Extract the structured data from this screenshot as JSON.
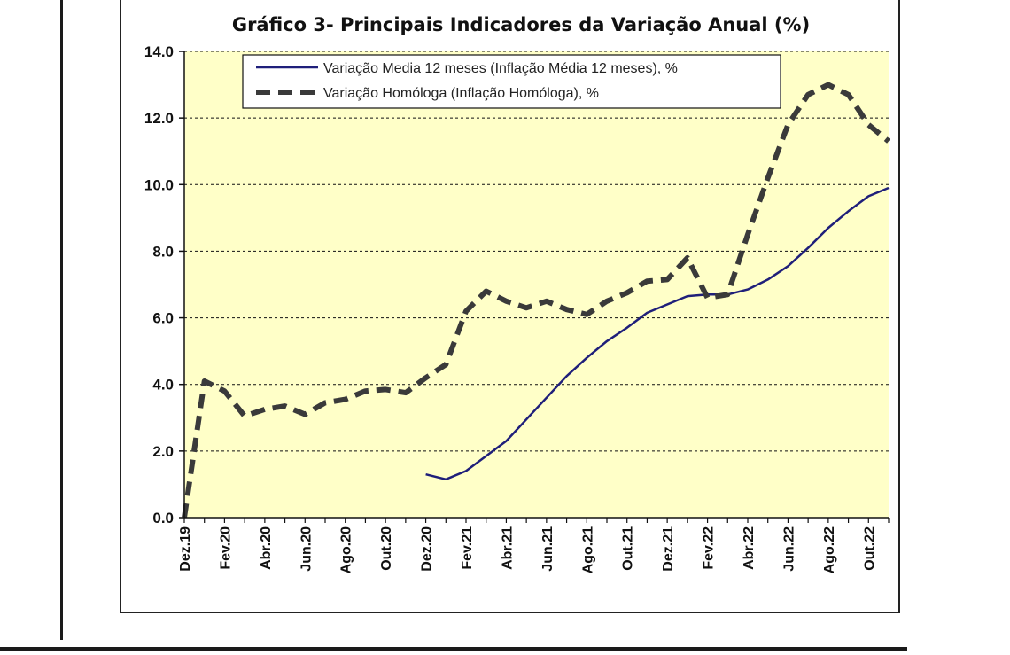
{
  "chart_data": {
    "type": "line",
    "title": "Gráfico 3- Principais Indicadores da Variação Anual (%)",
    "xlabel": "",
    "ylabel": "",
    "ylim": [
      0,
      14
    ],
    "yticks": [
      "0.0",
      "2.0",
      "4.0",
      "6.0",
      "8.0",
      "10.0",
      "12.0",
      "14.0"
    ],
    "x_tick_labels": [
      "Dez.19",
      "Fev.20",
      "Abr.20",
      "Jun.20",
      "Ago.20",
      "Out.20",
      "Dez.20",
      "Fev.21",
      "Abr.21",
      "Jun.21",
      "Ago.21",
      "Out.21",
      "Dez.21",
      "Fev.22",
      "Abr.22",
      "Jun.22",
      "Ago.22",
      "Out.22"
    ],
    "grid": "horizontal dashed",
    "legend_position": "top",
    "plot_background": "#ffffc8",
    "series": [
      {
        "name": "Variação Media 12 meses (Inflação Média 12 meses), %",
        "style": "solid",
        "color": "#1f1f7a",
        "x": [
          "Dez.20",
          "Jan.21",
          "Fev.21",
          "Mar.21",
          "Abr.21",
          "Mai.21",
          "Jun.21",
          "Jul.21",
          "Ago.21",
          "Set.21",
          "Out.21",
          "Nov.21",
          "Dez.21",
          "Jan.22",
          "Fev.22",
          "Mar.22",
          "Abr.22",
          "Mai.22",
          "Jun.22",
          "Jul.22",
          "Ago.22",
          "Set.22",
          "Out.22",
          "Nov.22"
        ],
        "values": [
          1.3,
          1.15,
          1.4,
          1.85,
          2.3,
          2.95,
          3.6,
          4.25,
          4.8,
          5.3,
          5.7,
          6.15,
          6.4,
          6.65,
          6.7,
          6.7,
          6.85,
          7.15,
          7.55,
          8.1,
          8.7,
          9.2,
          9.65,
          9.9
        ]
      },
      {
        "name": "Variação Homóloga (Inflação Homóloga), %",
        "style": "dashed",
        "color": "#3a3a3a",
        "x": [
          "Dez.19",
          "Jan.20",
          "Fev.20",
          "Mar.20",
          "Abr.20",
          "Mai.20",
          "Jun.20",
          "Jul.20",
          "Ago.20",
          "Set.20",
          "Out.20",
          "Nov.20",
          "Dez.20",
          "Jan.21",
          "Fev.21",
          "Mar.21",
          "Abr.21",
          "Mai.21",
          "Jun.21",
          "Jul.21",
          "Ago.21",
          "Set.21",
          "Out.21",
          "Nov.21",
          "Dez.21",
          "Jan.22",
          "Fev.22",
          "Mar.22",
          "Abr.22",
          "Mai.22",
          "Jun.22",
          "Jul.22",
          "Ago.22",
          "Set.22",
          "Out.22",
          "Nov.22"
        ],
        "values": [
          0.0,
          4.1,
          3.8,
          3.05,
          3.25,
          3.35,
          3.1,
          3.45,
          3.55,
          3.8,
          3.85,
          3.75,
          4.2,
          4.6,
          6.2,
          6.8,
          6.5,
          6.3,
          6.5,
          6.25,
          6.1,
          6.5,
          6.75,
          7.1,
          7.15,
          7.8,
          6.6,
          6.7,
          8.5,
          10.2,
          11.8,
          12.7,
          13.0,
          12.7,
          11.8,
          11.3
        ]
      }
    ]
  }
}
